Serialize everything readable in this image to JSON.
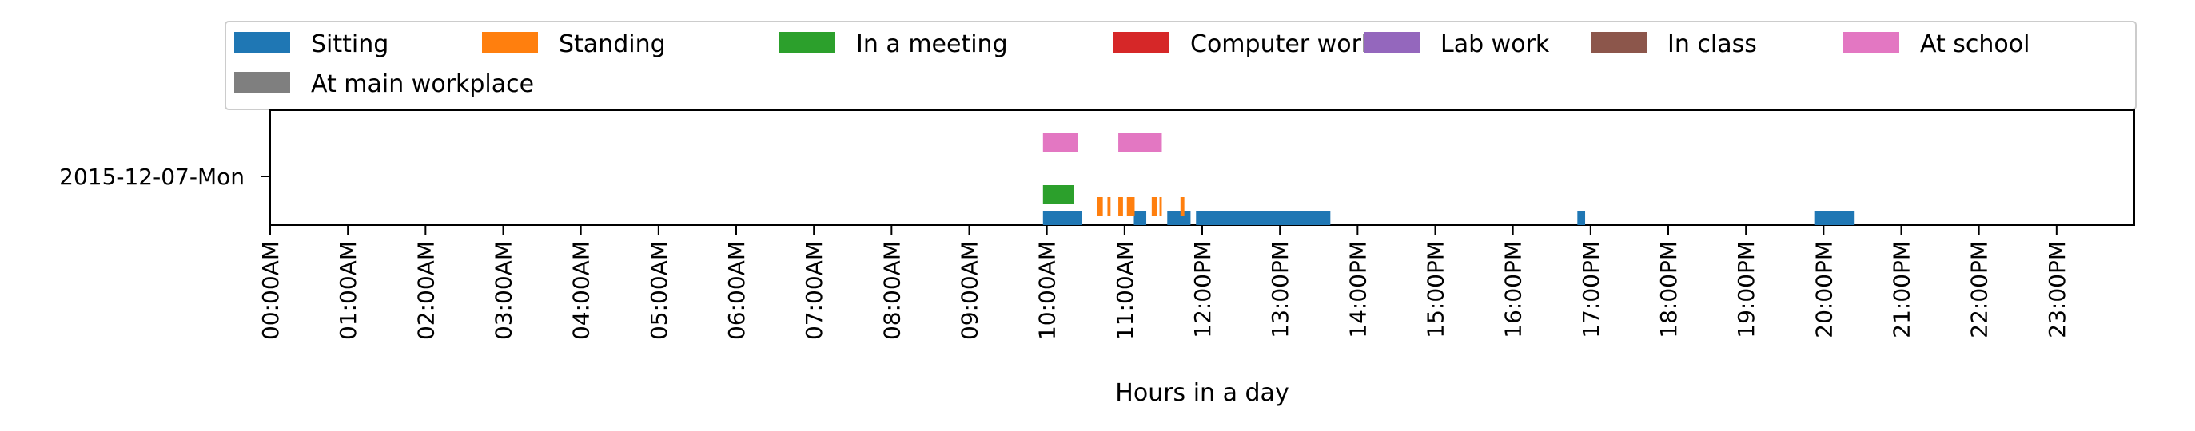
{
  "chart_data": {
    "type": "timeline",
    "xlabel": "Hours in a day",
    "ylabel": "",
    "xlim": [
      0,
      24
    ],
    "x_ticks": [
      "00:00AM",
      "01:00AM",
      "02:00AM",
      "03:00AM",
      "04:00AM",
      "05:00AM",
      "06:00AM",
      "07:00AM",
      "08:00AM",
      "09:00AM",
      "10:00AM",
      "11:00AM",
      "12:00PM",
      "13:00PM",
      "14:00PM",
      "15:00PM",
      "16:00PM",
      "17:00PM",
      "18:00PM",
      "19:00PM",
      "20:00PM",
      "21:00PM",
      "22:00PM",
      "23:00PM"
    ],
    "categories": [
      "2015-12-07-Mon"
    ],
    "legend_position": "top",
    "grid": false,
    "series": [
      {
        "name": "Sitting",
        "color": "#1f77b4",
        "level": 0,
        "intervals": [
          [
            9.95,
            10.45
          ],
          [
            11.12,
            11.28
          ],
          [
            11.55,
            11.85
          ],
          [
            11.92,
            13.65
          ],
          [
            16.83,
            16.93
          ],
          [
            19.88,
            20.4
          ]
        ]
      },
      {
        "name": "Standing",
        "color": "#ff7f0e",
        "level": 1,
        "intervals": [
          [
            10.65,
            10.72
          ],
          [
            10.78,
            10.82
          ],
          [
            10.92,
            10.98
          ],
          [
            11.03,
            11.13
          ],
          [
            11.35,
            11.42
          ],
          [
            11.45,
            11.48
          ],
          [
            11.72,
            11.77
          ]
        ]
      },
      {
        "name": "In a meeting",
        "color": "#2ca02c",
        "level": 2,
        "intervals": [
          [
            9.95,
            10.35
          ]
        ]
      },
      {
        "name": "Computer work",
        "color": "#d62728",
        "level": 3,
        "intervals": []
      },
      {
        "name": "Lab work",
        "color": "#9467bd",
        "level": 3,
        "intervals": []
      },
      {
        "name": "In class",
        "color": "#8c564b",
        "level": 3,
        "intervals": []
      },
      {
        "name": "At school",
        "color": "#e377c2",
        "level": 4,
        "intervals": [
          [
            9.95,
            10.4
          ],
          [
            10.92,
            11.48
          ]
        ]
      },
      {
        "name": "At main workplace",
        "color": "#7f7f7f",
        "level": 5,
        "intervals": []
      }
    ]
  }
}
